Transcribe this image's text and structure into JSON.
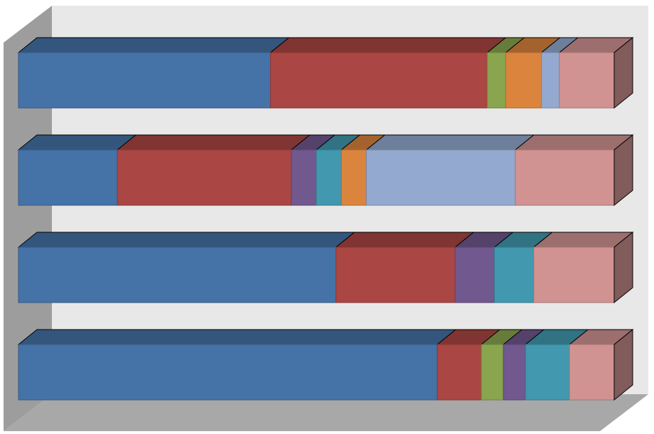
{
  "chart_data": {
    "type": "bar",
    "orientation": "horizontal",
    "stacking": "percent",
    "style": "3d",
    "title": "",
    "xlabel": "",
    "ylabel": "",
    "xlim": [
      0,
      100
    ],
    "grid": false,
    "legend": "none",
    "categories": [
      "",
      "",
      "",
      ""
    ],
    "series": [
      {
        "color": "#4572A7",
        "values": [
          42.3,
          16.6,
          53.3,
          70.3
        ]
      },
      {
        "color": "#AA4643",
        "values": [
          36.4,
          29.2,
          20.0,
          7.4
        ]
      },
      {
        "color": "#89A54E",
        "values": [
          3.1,
          0.0,
          0.0,
          3.7
        ]
      },
      {
        "color": "#71588F",
        "values": [
          0.0,
          4.2,
          6.6,
          3.7
        ]
      },
      {
        "color": "#4198AF",
        "values": [
          0.0,
          4.2,
          6.6,
          7.4
        ]
      },
      {
        "color": "#DB843D",
        "values": [
          6.0,
          4.2,
          0.0,
          0.0
        ]
      },
      {
        "color": "#93A9CF",
        "values": [
          3.0,
          25.0,
          0.0,
          0.0
        ]
      },
      {
        "color": "#D19392",
        "values": [
          9.2,
          16.6,
          13.5,
          7.5
        ]
      }
    ]
  },
  "colors": {
    "wall": "#e8e8e8",
    "side_wall": "#9d9d9d",
    "floor": "#a8a8a8"
  }
}
